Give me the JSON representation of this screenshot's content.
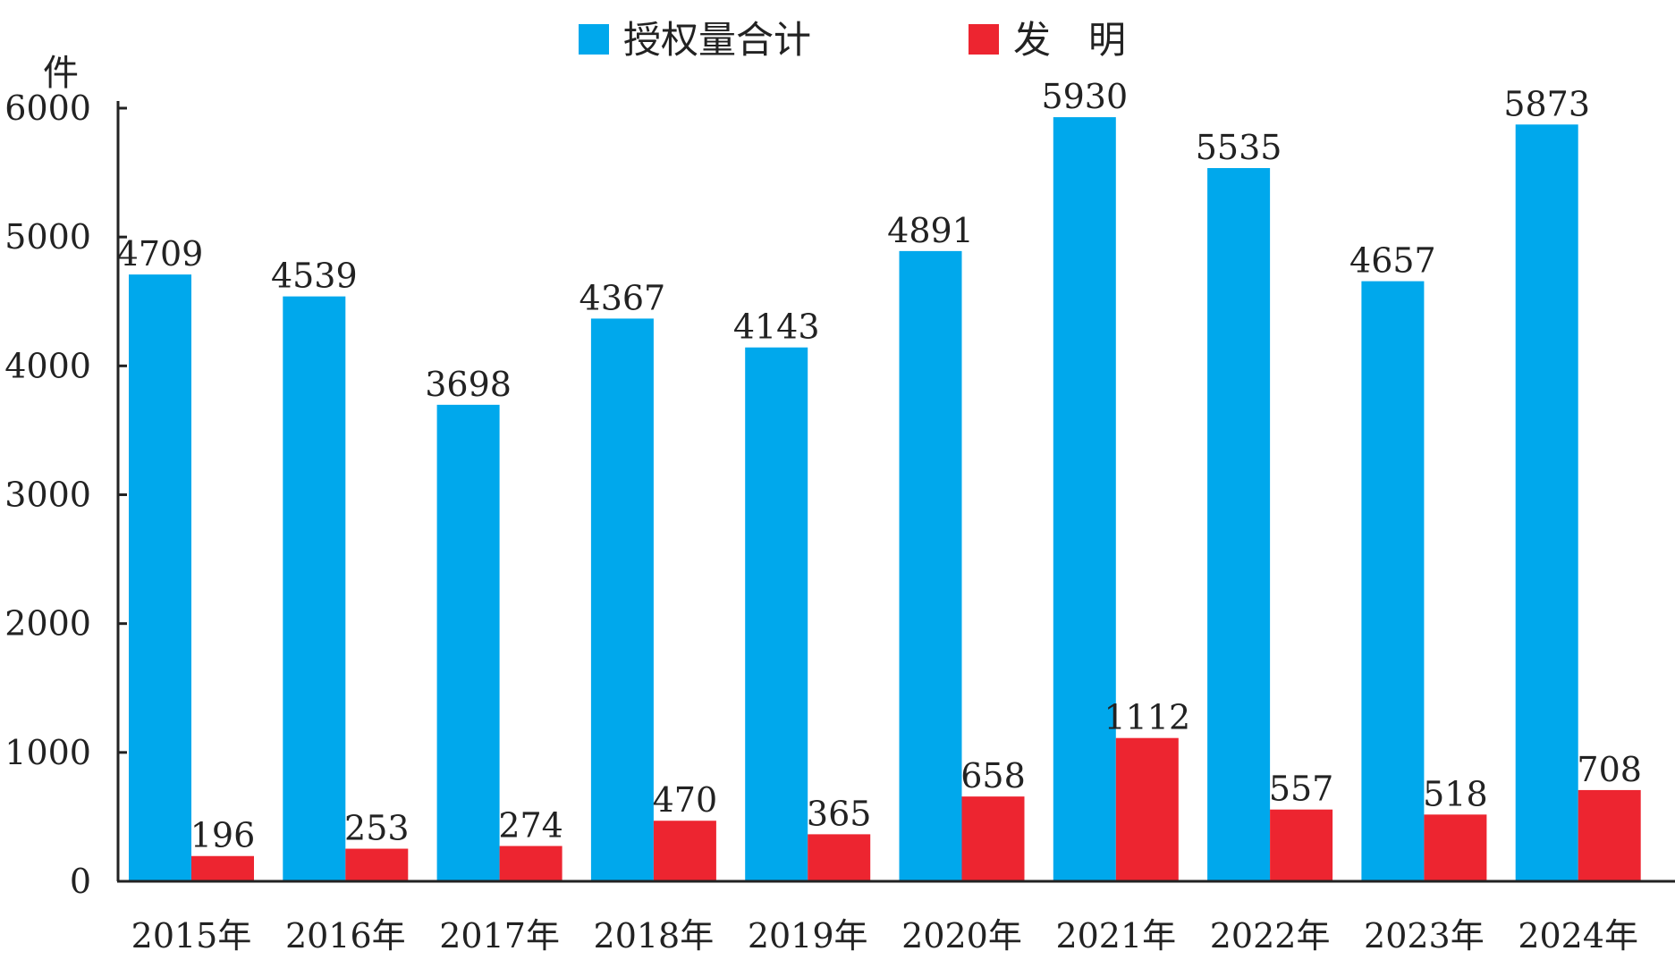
{
  "chart_data": {
    "type": "bar",
    "title": "",
    "xlabel": "",
    "ylabel": "件",
    "ylim": [
      0,
      6000
    ],
    "yticks": [
      0,
      1000,
      2000,
      3000,
      4000,
      5000,
      6000
    ],
    "grid": false,
    "legend_position": "top-center",
    "categories": [
      "2015年",
      "2016年",
      "2017年",
      "2018年",
      "2019年",
      "2020年",
      "2021年",
      "2022年",
      "2023年",
      "2024年"
    ],
    "series": [
      {
        "name": "授权量合计",
        "color": "#00a8ec",
        "values": [
          4709,
          4539,
          3698,
          4367,
          4143,
          4891,
          5930,
          5535,
          4657,
          5873
        ]
      },
      {
        "name": "发　明",
        "color": "#ed2530",
        "values": [
          196,
          253,
          274,
          470,
          365,
          658,
          1112,
          557,
          518,
          708
        ]
      }
    ]
  }
}
